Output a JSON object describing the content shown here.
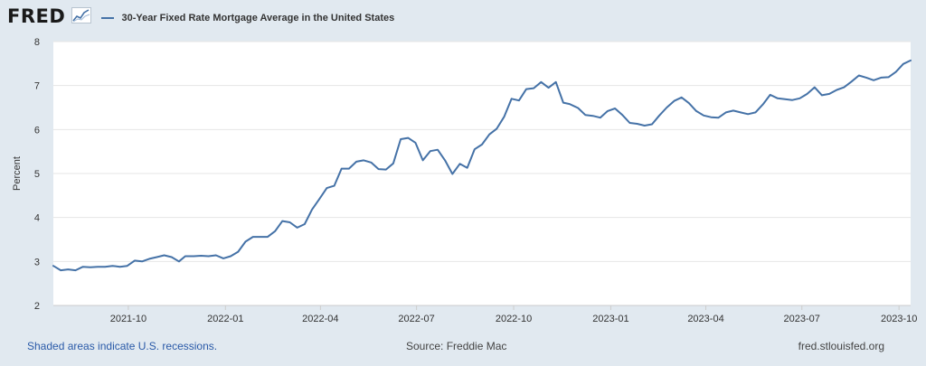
{
  "header": {
    "logo_text": "FRED",
    "logo_icon": "chart-line-icon",
    "legend_label": "30-Year Fixed Rate Mortgage Average in the United States"
  },
  "footer": {
    "recession_note": "Shaded areas indicate U.S. recessions.",
    "source": "Source: Freddie Mac",
    "site": "fred.stlouisfed.org"
  },
  "colors": {
    "series": "#4572a7",
    "plot_background": "#ffffff",
    "page_background": "#e1e9f0",
    "gridline": "#e6e6e6"
  },
  "chart_data": {
    "type": "line",
    "title": "",
    "xlabel": "",
    "ylabel": "Percent",
    "ylim": [
      2,
      8
    ],
    "yticks": [
      2,
      3,
      4,
      5,
      6,
      7,
      8
    ],
    "x_ticks": [
      {
        "label": "2021-10",
        "date": "2021-10-01"
      },
      {
        "label": "2022-01",
        "date": "2022-01-01"
      },
      {
        "label": "2022-04",
        "date": "2022-04-01"
      },
      {
        "label": "2022-07",
        "date": "2022-07-01"
      },
      {
        "label": "2022-10",
        "date": "2022-10-01"
      },
      {
        "label": "2023-01",
        "date": "2023-01-01"
      },
      {
        "label": "2023-04",
        "date": "2023-04-01"
      },
      {
        "label": "2023-07",
        "date": "2023-07-01"
      },
      {
        "label": "2023-10",
        "date": "2023-10-01"
      }
    ],
    "xlim": [
      "2021-07-22",
      "2023-10-12"
    ],
    "grid": true,
    "legend_position": "top-left",
    "series": [
      {
        "name": "30-Year Fixed Rate Mortgage Average in the United States",
        "x": [
          "2021-07-22",
          "2021-07-29",
          "2021-08-05",
          "2021-08-12",
          "2021-08-19",
          "2021-08-26",
          "2021-09-02",
          "2021-09-09",
          "2021-09-16",
          "2021-09-23",
          "2021-09-30",
          "2021-10-07",
          "2021-10-14",
          "2021-10-21",
          "2021-10-28",
          "2021-11-04",
          "2021-11-11",
          "2021-11-18",
          "2021-11-24",
          "2021-12-02",
          "2021-12-09",
          "2021-12-16",
          "2021-12-23",
          "2021-12-30",
          "2022-01-06",
          "2022-01-13",
          "2022-01-20",
          "2022-01-27",
          "2022-02-03",
          "2022-02-10",
          "2022-02-17",
          "2022-02-24",
          "2022-03-03",
          "2022-03-10",
          "2022-03-17",
          "2022-03-24",
          "2022-03-31",
          "2022-04-07",
          "2022-04-14",
          "2022-04-21",
          "2022-04-28",
          "2022-05-05",
          "2022-05-12",
          "2022-05-19",
          "2022-05-26",
          "2022-06-02",
          "2022-06-09",
          "2022-06-16",
          "2022-06-23",
          "2022-06-30",
          "2022-07-07",
          "2022-07-14",
          "2022-07-21",
          "2022-07-28",
          "2022-08-04",
          "2022-08-11",
          "2022-08-18",
          "2022-08-25",
          "2022-09-01",
          "2022-09-08",
          "2022-09-15",
          "2022-09-22",
          "2022-09-29",
          "2022-10-06",
          "2022-10-13",
          "2022-10-20",
          "2022-10-27",
          "2022-11-03",
          "2022-11-10",
          "2022-11-17",
          "2022-11-23",
          "2022-12-01",
          "2022-12-08",
          "2022-12-15",
          "2022-12-22",
          "2022-12-29",
          "2023-01-05",
          "2023-01-12",
          "2023-01-19",
          "2023-01-26",
          "2023-02-02",
          "2023-02-09",
          "2023-02-16",
          "2023-02-23",
          "2023-03-02",
          "2023-03-09",
          "2023-03-16",
          "2023-03-23",
          "2023-03-30",
          "2023-04-06",
          "2023-04-13",
          "2023-04-20",
          "2023-04-27",
          "2023-05-04",
          "2023-05-11",
          "2023-05-18",
          "2023-05-25",
          "2023-06-01",
          "2023-06-08",
          "2023-06-15",
          "2023-06-22",
          "2023-06-29",
          "2023-07-06",
          "2023-07-13",
          "2023-07-20",
          "2023-07-27",
          "2023-08-03",
          "2023-08-10",
          "2023-08-17",
          "2023-08-24",
          "2023-08-31",
          "2023-09-07",
          "2023-09-14",
          "2023-09-21",
          "2023-09-28",
          "2023-10-05",
          "2023-10-12"
        ],
        "values": [
          2.9,
          2.8,
          2.82,
          2.8,
          2.88,
          2.87,
          2.88,
          2.88,
          2.9,
          2.88,
          2.9,
          3.02,
          3.0,
          3.06,
          3.1,
          3.14,
          3.1,
          3.0,
          3.12,
          3.12,
          3.13,
          3.12,
          3.14,
          3.07,
          3.12,
          3.22,
          3.45,
          3.56,
          3.56,
          3.56,
          3.69,
          3.92,
          3.89,
          3.77,
          3.85,
          4.18,
          4.42,
          4.67,
          4.72,
          5.11,
          5.11,
          5.27,
          5.3,
          5.25,
          5.1,
          5.09,
          5.23,
          5.78,
          5.81,
          5.7,
          5.3,
          5.51,
          5.54,
          5.3,
          4.99,
          5.22,
          5.13,
          5.55,
          5.66,
          5.89,
          6.02,
          6.29,
          6.7,
          6.66,
          6.92,
          6.94,
          7.08,
          6.95,
          7.08,
          6.61,
          6.58,
          6.49,
          6.33,
          6.31,
          6.27,
          6.42,
          6.48,
          6.33,
          6.15,
          6.13,
          6.09,
          6.12,
          6.32,
          6.5,
          6.65,
          6.73,
          6.6,
          6.42,
          6.32,
          6.28,
          6.27,
          6.39,
          6.43,
          6.39,
          6.35,
          6.39,
          6.57,
          6.79,
          6.71,
          6.69,
          6.67,
          6.71,
          6.81,
          6.96,
          6.78,
          6.81,
          6.9,
          6.96,
          7.09,
          7.23,
          7.18,
          7.12,
          7.18,
          7.19,
          7.31,
          7.49,
          7.57
        ]
      }
    ]
  }
}
